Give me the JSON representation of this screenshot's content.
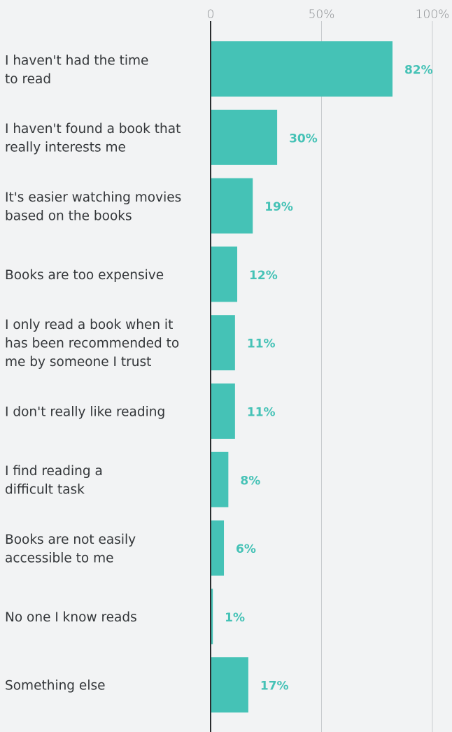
{
  "colors": {
    "bar": "#45c2b6",
    "value_label": "#45c2b6",
    "background": "#f2f3f4"
  },
  "chart_data": {
    "type": "bar",
    "orientation": "horizontal",
    "title": "",
    "xlabel": "",
    "ylabel": "",
    "xlim": [
      0,
      100
    ],
    "x_ticks": [
      {
        "value": 0,
        "label": "0"
      },
      {
        "value": 50,
        "label": "50%"
      },
      {
        "value": 100,
        "label": "100%"
      }
    ],
    "grid": true,
    "categories": [
      [
        "I haven't had the time",
        "to read"
      ],
      [
        "I haven't found a book that",
        "really interests me"
      ],
      [
        "It's easier watching movies",
        "based on the books"
      ],
      [
        "Books are too expensive"
      ],
      [
        "I only read a book when it",
        "has been recommended to",
        "me by someone I trust"
      ],
      [
        "I don't really like reading"
      ],
      [
        "I find reading a",
        "difficult task"
      ],
      [
        "Books are not easily",
        "accessible to me"
      ],
      [
        "No one I know reads"
      ],
      [
        "Something else"
      ]
    ],
    "values": [
      82,
      30,
      19,
      12,
      11,
      11,
      8,
      6,
      1,
      17
    ],
    "value_labels": [
      "82%",
      "30%",
      "19%",
      "12%",
      "11%",
      "11%",
      "8%",
      "6%",
      "1%",
      "17%"
    ]
  }
}
